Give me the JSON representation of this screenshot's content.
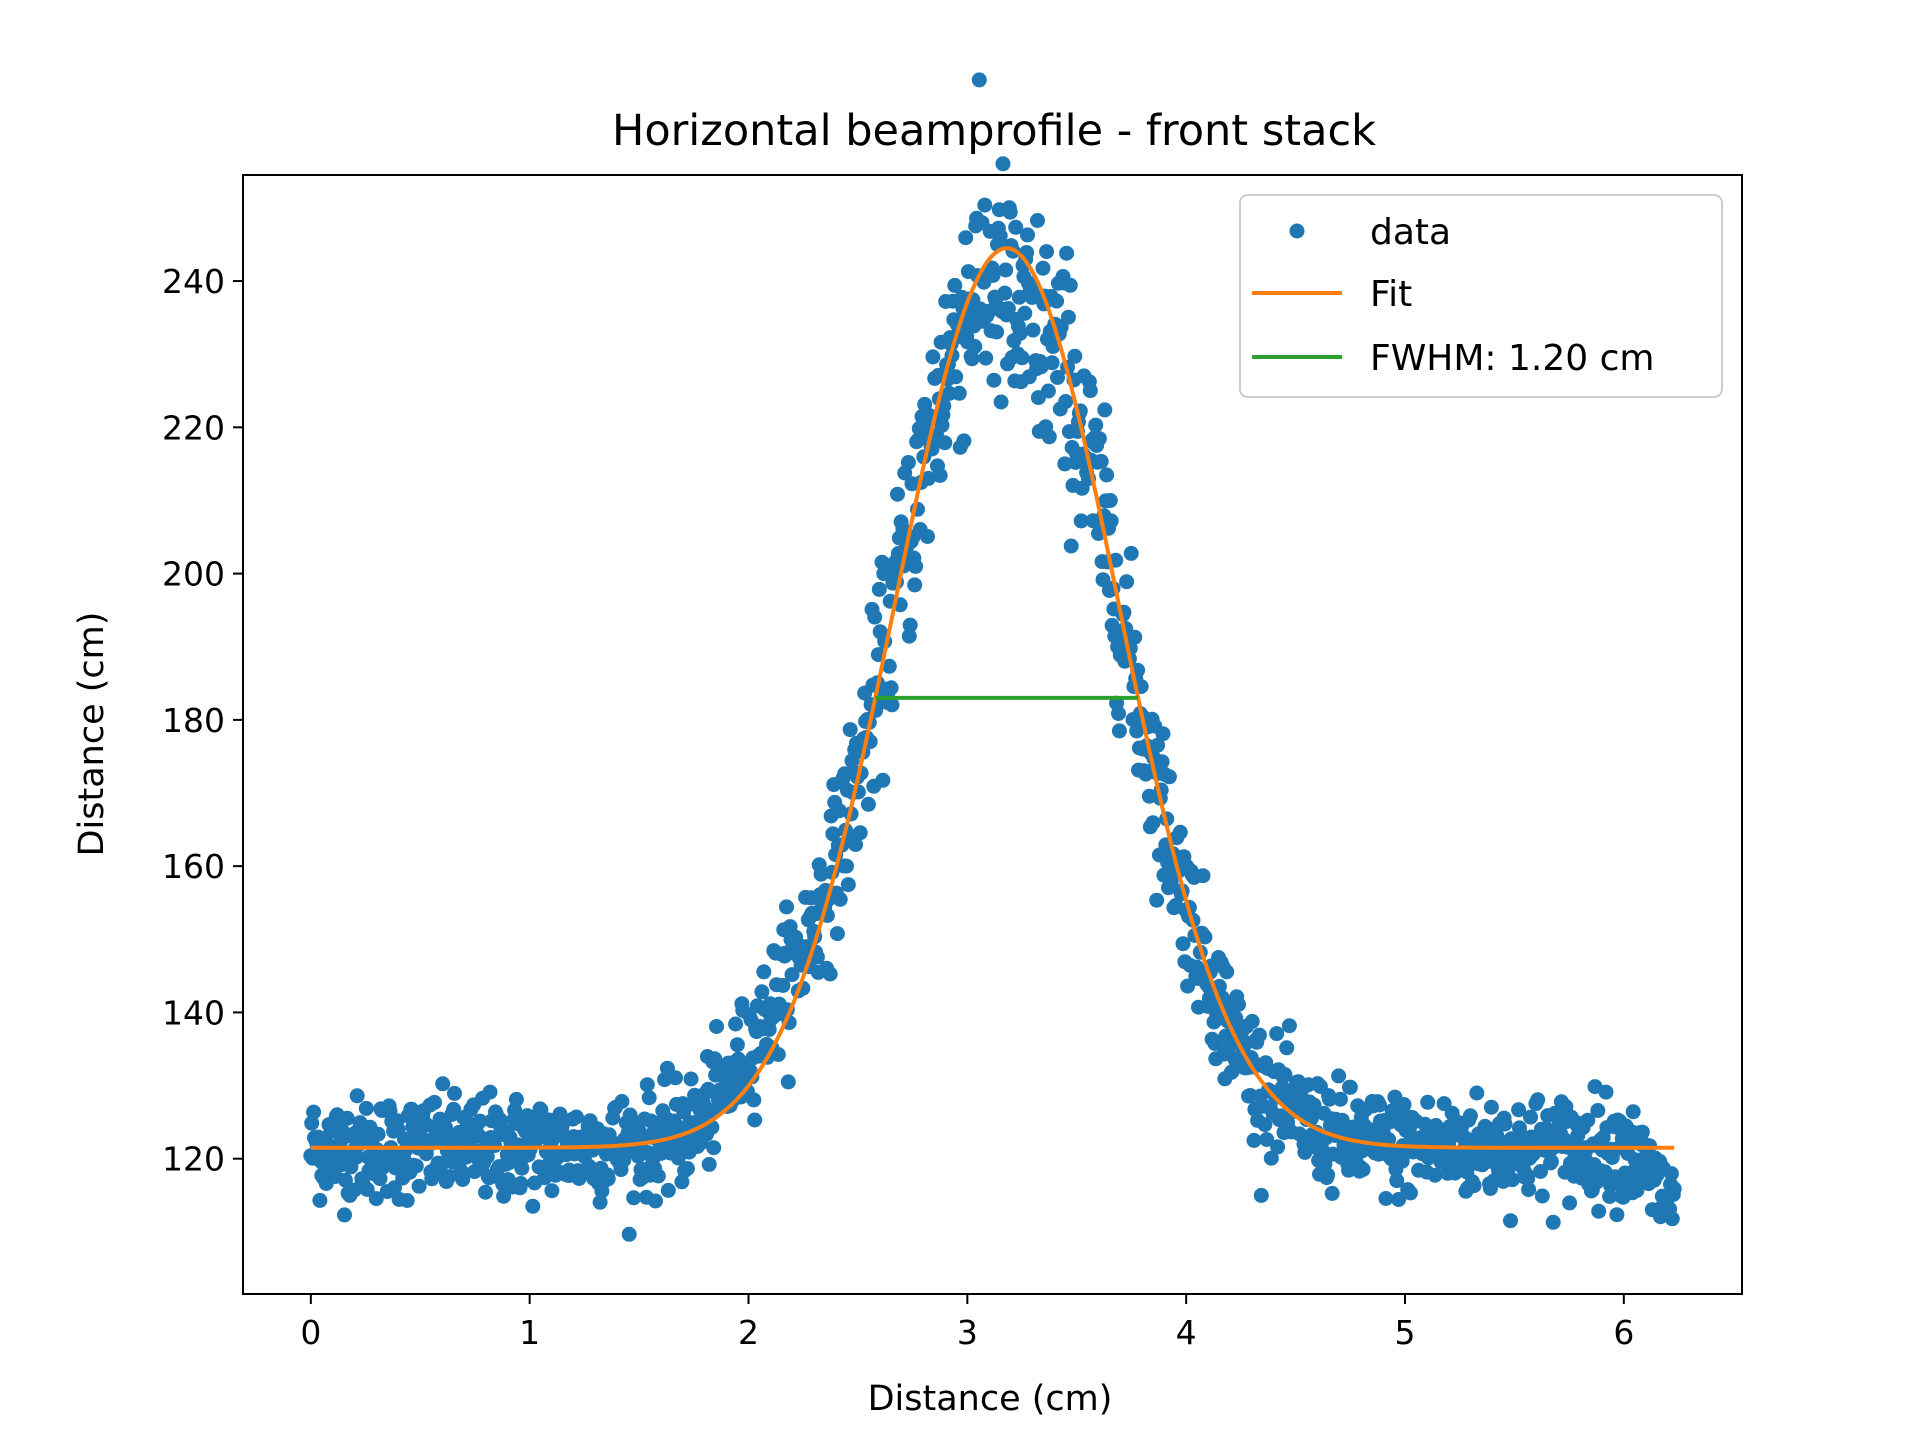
{
  "chart_data": {
    "type": "scatter",
    "title": "Horizontal beamprofile - front stack",
    "xlabel": "Distance (cm)",
    "ylabel": "Distance (cm)",
    "xlim": [
      -0.31,
      6.54
    ],
    "ylim": [
      101.5,
      254.5
    ],
    "xticks": [
      0,
      1,
      2,
      3,
      4,
      5,
      6
    ],
    "yticks": [
      120,
      140,
      160,
      180,
      200,
      220,
      240
    ],
    "grid": false,
    "legend_position": "top-right",
    "colors": {
      "data": "#1f77b4",
      "fit": "#ff7f0e",
      "fwhm": "#2ca02c"
    },
    "series": [
      {
        "name": "data",
        "kind": "scatter",
        "x_range": [
          0,
          6.23
        ],
        "n_points": 1500,
        "profile": "gaussian on flat baseline with noise",
        "baseline": 121.5,
        "amplitude": 123.0,
        "center": 3.18,
        "sigma": 0.51,
        "noise_std": 3.5
      },
      {
        "name": "Fit",
        "kind": "line",
        "x_range": [
          0,
          6.23
        ],
        "baseline": 121.5,
        "amplitude": 123.0,
        "center": 3.18,
        "sigma": 0.51
      },
      {
        "name": "FWHM: 1.20 cm",
        "kind": "line",
        "x": [
          2.58,
          3.78
        ],
        "y": [
          183,
          183
        ]
      }
    ]
  }
}
